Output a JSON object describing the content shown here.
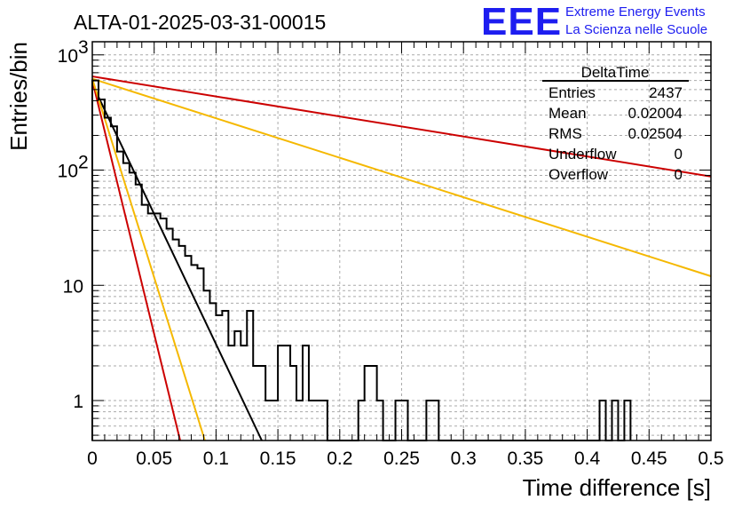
{
  "header": {
    "run_title": "ALTA-01-2025-03-31-00015",
    "logo_text": "EEE",
    "logo_line1": "Extreme Energy Events",
    "logo_line2": "La Scienza nelle Scuole"
  },
  "stats_box": {
    "title": "DeltaTime",
    "rows": [
      {
        "label": "Entries",
        "value": "2437"
      },
      {
        "label": "Mean",
        "value": "0.02004"
      },
      {
        "label": "RMS",
        "value": "0.02504"
      },
      {
        "label": "Underflow",
        "value": "0"
      },
      {
        "label": "Overflow",
        "value": "0"
      }
    ]
  },
  "chart_data": {
    "type": "line",
    "xlabel": "Time difference [s]",
    "ylabel": "Entries/bin",
    "xlim": [
      0,
      0.5
    ],
    "ylim": [
      0.45,
      1300
    ],
    "y_scale": "log",
    "grid": true,
    "x_ticks": [
      {
        "v": 0,
        "label": "0"
      },
      {
        "v": 0.05,
        "label": "0.05"
      },
      {
        "v": 0.1,
        "label": "0.1"
      },
      {
        "v": 0.15,
        "label": "0.15"
      },
      {
        "v": 0.2,
        "label": "0.2"
      },
      {
        "v": 0.25,
        "label": "0.25"
      },
      {
        "v": 0.3,
        "label": "0.3"
      },
      {
        "v": 0.35,
        "label": "0.35"
      },
      {
        "v": 0.4,
        "label": "0.4"
      },
      {
        "v": 0.45,
        "label": "0.45"
      },
      {
        "v": 0.5,
        "label": "0.5"
      }
    ],
    "y_ticks": [
      {
        "v": 1,
        "label": "1",
        "sup": ""
      },
      {
        "v": 10,
        "label": "10",
        "sup": ""
      },
      {
        "v": 100,
        "label": "10",
        "sup": "2"
      },
      {
        "v": 1000,
        "label": "10",
        "sup": "3"
      }
    ],
    "bin_width": 0.005,
    "histogram": [
      600,
      410,
      285,
      240,
      145,
      115,
      95,
      75,
      50,
      42,
      42,
      38,
      31,
      25,
      22,
      18,
      15,
      14,
      9,
      7,
      5.5,
      6,
      3,
      4,
      3,
      6,
      2,
      2,
      1,
      1,
      3,
      3,
      2,
      1,
      3,
      1,
      1,
      1,
      0.45,
      0.45,
      0.45,
      0.45,
      0.45,
      1,
      2,
      2,
      1,
      0.45,
      0.45,
      1,
      1,
      0.45,
      0.45,
      0.45,
      1,
      1,
      0.45,
      0.45,
      0.45,
      0.45,
      0.45,
      0.45,
      0.45,
      0.45,
      0.45,
      0.45,
      0.45,
      0.45,
      0.45,
      0.45,
      0.45,
      0.45,
      0.45,
      0.45,
      0.45,
      0.45,
      0.45,
      0.45,
      0.45,
      0.45,
      0.45,
      0.45,
      1,
      0.45,
      1,
      0.45,
      1
    ],
    "series": [
      {
        "color": "#000000",
        "points": [
          [
            0,
            560
          ],
          [
            0.137,
            0.45
          ]
        ]
      },
      {
        "color": "#cc0000",
        "points": [
          [
            0,
            600
          ],
          [
            0.071,
            0.45
          ]
        ]
      },
      {
        "color": "#f5b800",
        "points": [
          [
            0,
            620
          ],
          [
            0.091,
            0.45
          ]
        ]
      },
      {
        "color": "#f5b800",
        "points": [
          [
            0,
            620
          ],
          [
            0.5,
            12
          ]
        ]
      },
      {
        "color": "#cc0000",
        "points": [
          [
            0,
            650
          ],
          [
            0.5,
            88
          ]
        ]
      }
    ]
  }
}
